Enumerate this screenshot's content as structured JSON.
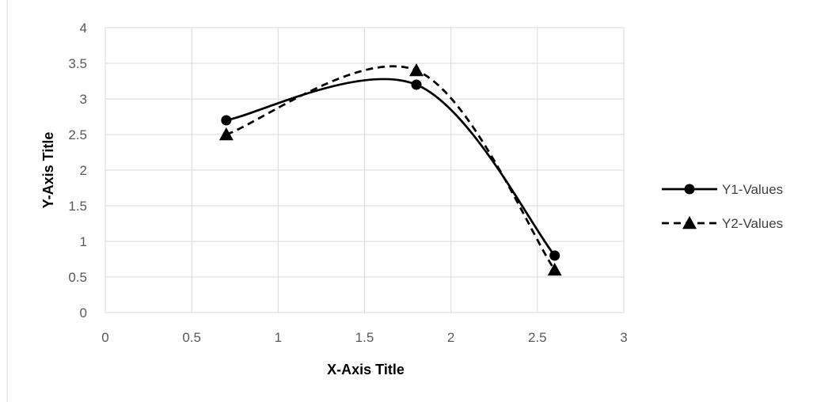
{
  "chart_data": {
    "type": "scatter",
    "title": "",
    "xlabel": "X-Axis Title",
    "ylabel": "Y-Axis Title",
    "xlim": [
      0,
      3
    ],
    "ylim": [
      0,
      4
    ],
    "x_ticks": [
      "0",
      "0.5",
      "1",
      "1.5",
      "2",
      "2.5",
      "3"
    ],
    "y_ticks": [
      "0",
      "0.5",
      "1",
      "1.5",
      "2",
      "2.5",
      "3",
      "3.5",
      "4"
    ],
    "x_tick_values": [
      0,
      0.5,
      1,
      1.5,
      2,
      2.5,
      3
    ],
    "y_tick_values": [
      0,
      0.5,
      1,
      1.5,
      2,
      2.5,
      3,
      3.5,
      4
    ],
    "grid": true,
    "legend_position": "right",
    "smooth_lines": true,
    "series": [
      {
        "name": "Y1-Values",
        "x": [
          0.7,
          1.8,
          2.6
        ],
        "y": [
          2.7,
          3.2,
          0.8
        ],
        "marker": "circle",
        "line_style": "solid",
        "color": "#000000"
      },
      {
        "name": "Y2-Values",
        "x": [
          0.7,
          1.8,
          2.6
        ],
        "y": [
          2.5,
          3.4,
          0.6
        ],
        "marker": "triangle",
        "line_style": "dashed",
        "color": "#000000"
      }
    ]
  },
  "colors": {
    "gridline": "#d9d9d9",
    "tick_text": "#595959",
    "border": "#d9d9d9"
  }
}
